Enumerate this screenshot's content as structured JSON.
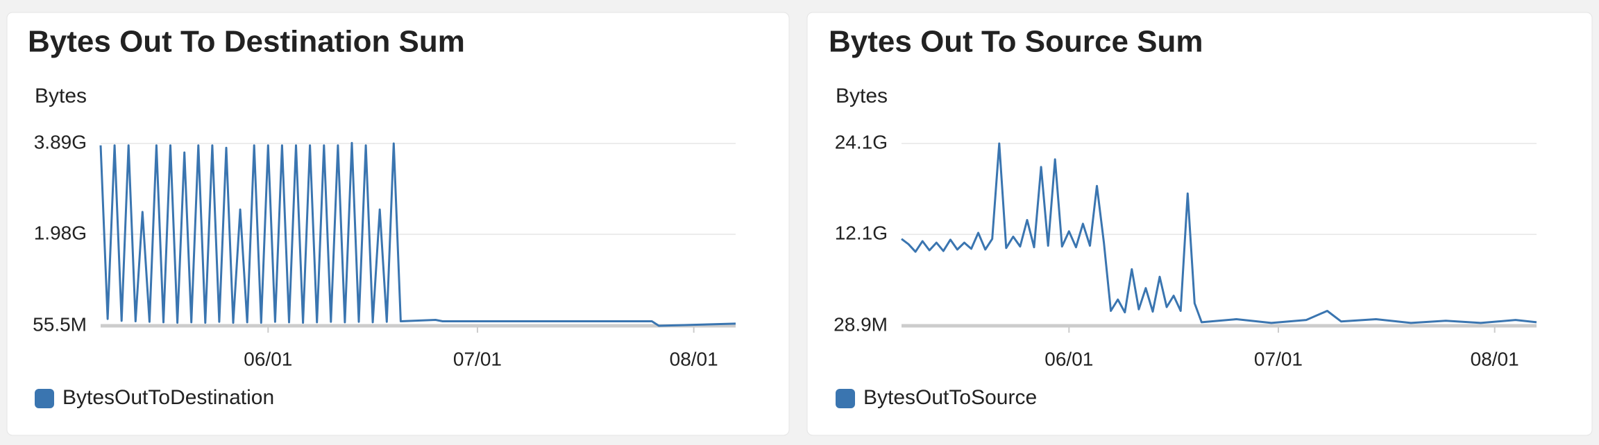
{
  "chart_data": [
    {
      "type": "line",
      "title": "Bytes Out To Destination Sum",
      "y_label": "Bytes",
      "x": [
        "05/08",
        "05/09",
        "05/10",
        "05/11",
        "05/12",
        "05/13",
        "05/14",
        "05/15",
        "05/16",
        "05/17",
        "05/18",
        "05/19",
        "05/20",
        "05/21",
        "05/22",
        "05/23",
        "05/24",
        "05/25",
        "05/26",
        "05/27",
        "05/28",
        "05/29",
        "05/30",
        "05/31",
        "06/01",
        "06/02",
        "06/03",
        "06/04",
        "06/05",
        "06/06",
        "06/07",
        "06/08",
        "06/09",
        "06/10",
        "06/11",
        "06/12",
        "06/13",
        "06/14",
        "06/15",
        "06/16",
        "06/17",
        "06/18",
        "06/19",
        "06/20",
        "06/25",
        "06/26",
        "07/26",
        "07/27",
        "08/07"
      ],
      "series": [
        {
          "name": "BytesOutToDestination",
          "color": "#3a75b0",
          "values": [
            3850000000,
            200000000,
            3850000000,
            160000000,
            3850000000,
            150000000,
            2450000000,
            140000000,
            3850000000,
            130000000,
            3850000000,
            120000000,
            3700000000,
            130000000,
            3850000000,
            120000000,
            3850000000,
            140000000,
            3800000000,
            120000000,
            2500000000,
            130000000,
            3850000000,
            120000000,
            3850000000,
            140000000,
            3850000000,
            130000000,
            3850000000,
            120000000,
            3850000000,
            130000000,
            3850000000,
            140000000,
            3850000000,
            130000000,
            3900000000,
            140000000,
            3850000000,
            130000000,
            2500000000,
            140000000,
            3890000000,
            150000000,
            180000000,
            150000000,
            150000000,
            55500000,
            100000000
          ]
        }
      ],
      "xlim": [
        "05/08",
        "08/07"
      ],
      "xticks": [
        "06/01",
        "07/01",
        "08/01"
      ],
      "ylim": [
        55500000,
        3890000000
      ],
      "yticks": [
        {
          "value": 55500000,
          "label": "55.5M"
        },
        {
          "value": 1980000000,
          "label": "1.98G"
        },
        {
          "value": 3890000000,
          "label": "3.89G"
        }
      ],
      "grid": true
    },
    {
      "type": "line",
      "title": "Bytes Out To Source Sum",
      "y_label": "Bytes",
      "x": [
        "05/08",
        "05/09",
        "05/10",
        "05/11",
        "05/12",
        "05/13",
        "05/14",
        "05/15",
        "05/16",
        "05/17",
        "05/18",
        "05/19",
        "05/20",
        "05/21",
        "05/22",
        "05/23",
        "05/24",
        "05/25",
        "05/26",
        "05/27",
        "05/28",
        "05/29",
        "05/30",
        "05/31",
        "06/01",
        "06/02",
        "06/03",
        "06/04",
        "06/05",
        "06/06",
        "06/07",
        "06/08",
        "06/09",
        "06/10",
        "06/11",
        "06/12",
        "06/13",
        "06/14",
        "06/15",
        "06/16",
        "06/17",
        "06/18",
        "06/19",
        "06/20",
        "06/25",
        "06/30",
        "07/05",
        "07/08",
        "07/10",
        "07/15",
        "07/20",
        "07/25",
        "07/30",
        "08/04",
        "08/07"
      ],
      "series": [
        {
          "name": "BytesOutToSource",
          "color": "#3a75b0",
          "values": [
            11500000000,
            10800000000,
            9800000000,
            11200000000,
            10000000000,
            11000000000,
            9900000000,
            11400000000,
            10100000000,
            11000000000,
            10200000000,
            12300000000,
            10100000000,
            11500000000,
            24100000000,
            10300000000,
            11800000000,
            10500000000,
            14000000000,
            10400000000,
            21000000000,
            10600000000,
            22000000000,
            10500000000,
            12500000000,
            10400000000,
            13500000000,
            10600000000,
            18500000000,
            11000000000,
            2000000000,
            3500000000,
            1800000000,
            7500000000,
            2200000000,
            5000000000,
            1900000000,
            6500000000,
            2500000000,
            4000000000,
            2000000000,
            17500000000,
            3000000000,
            500000000,
            900000000,
            400000000,
            800000000,
            2000000000,
            600000000,
            900000000,
            400000000,
            700000000,
            400000000,
            800000000,
            500000000
          ]
        }
      ],
      "xlim": [
        "05/08",
        "08/07"
      ],
      "xticks": [
        "06/01",
        "07/01",
        "08/01"
      ],
      "ylim": [
        28900000,
        24100000000
      ],
      "yticks": [
        {
          "value": 28900000,
          "label": "28.9M"
        },
        {
          "value": 12100000000,
          "label": "12.1G"
        },
        {
          "value": 24100000000,
          "label": "24.1G"
        }
      ],
      "grid": true
    }
  ]
}
